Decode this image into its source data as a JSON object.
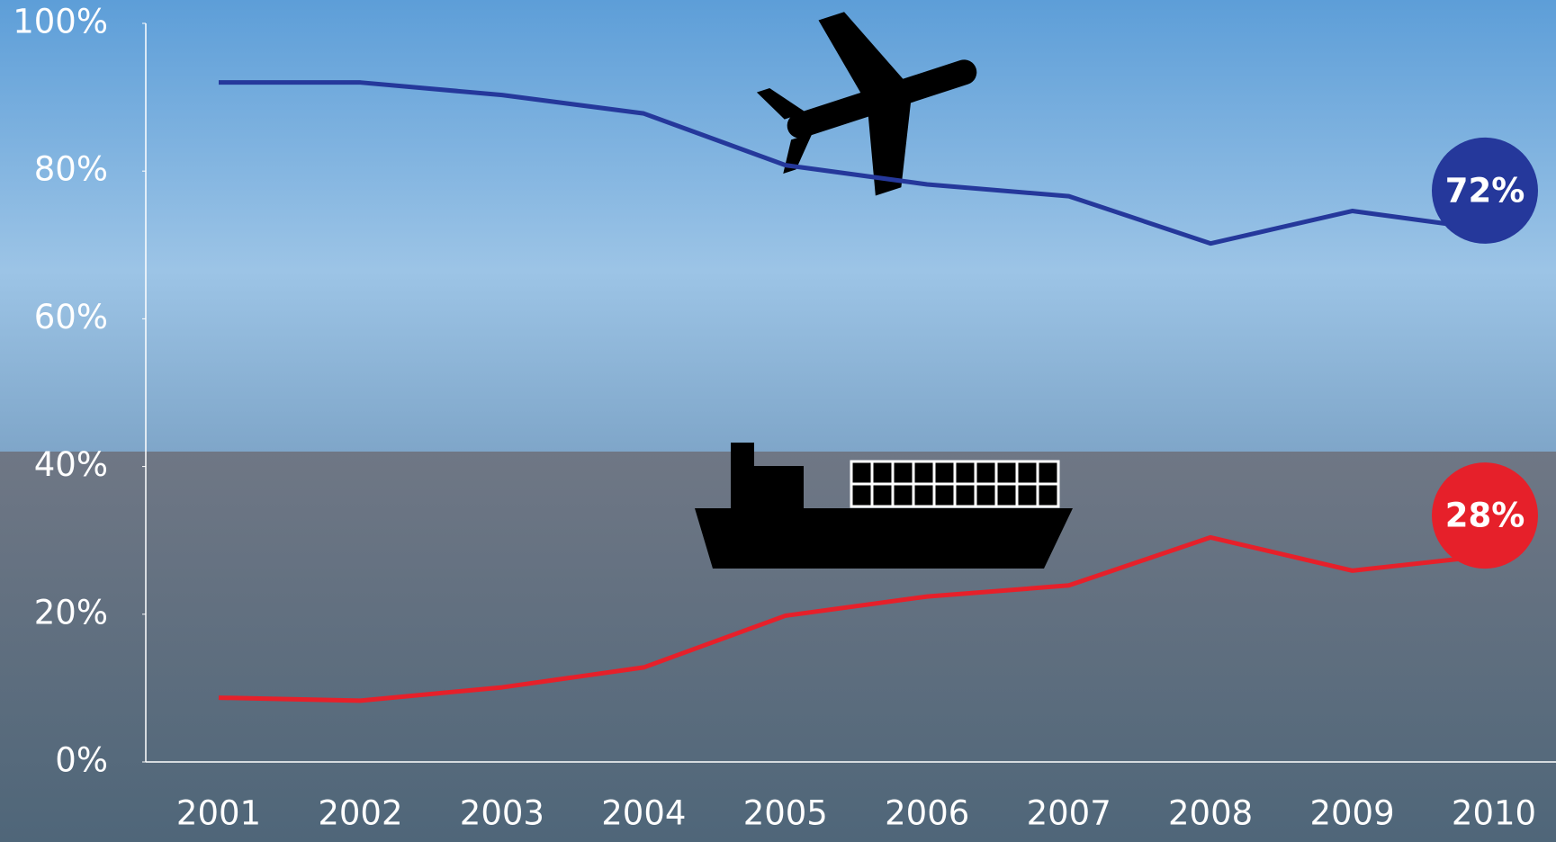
{
  "chart_data": {
    "type": "line",
    "x": [
      2001,
      2002,
      2003,
      2004,
      2005,
      2006,
      2007,
      2008,
      2009,
      2010
    ],
    "ylim": [
      0,
      100
    ],
    "yticks": [
      {
        "value": 0,
        "label": "0%"
      },
      {
        "value": 20,
        "label": "20%"
      },
      {
        "value": 40,
        "label": "40%"
      },
      {
        "value": 60,
        "label": "60%"
      },
      {
        "value": 80,
        "label": "80%"
      },
      {
        "value": 100,
        "label": "100%"
      }
    ],
    "series": [
      {
        "color": "#25389b",
        "values": [
          92,
          92,
          90.3,
          87.8,
          80.8,
          78.2,
          76.6,
          70.2,
          74.6,
          72
        ],
        "value_labels": [
          null,
          null,
          null,
          null,
          null,
          null,
          null,
          null,
          null,
          "72%"
        ]
      },
      {
        "color": "#e6202a",
        "values": [
          8.7,
          8.3,
          10.1,
          12.8,
          19.8,
          22.4,
          23.9,
          30.4,
          25.9,
          28
        ],
        "value_labels": [
          null,
          null,
          null,
          null,
          null,
          null,
          null,
          null,
          null,
          "28%"
        ]
      }
    ]
  }
}
